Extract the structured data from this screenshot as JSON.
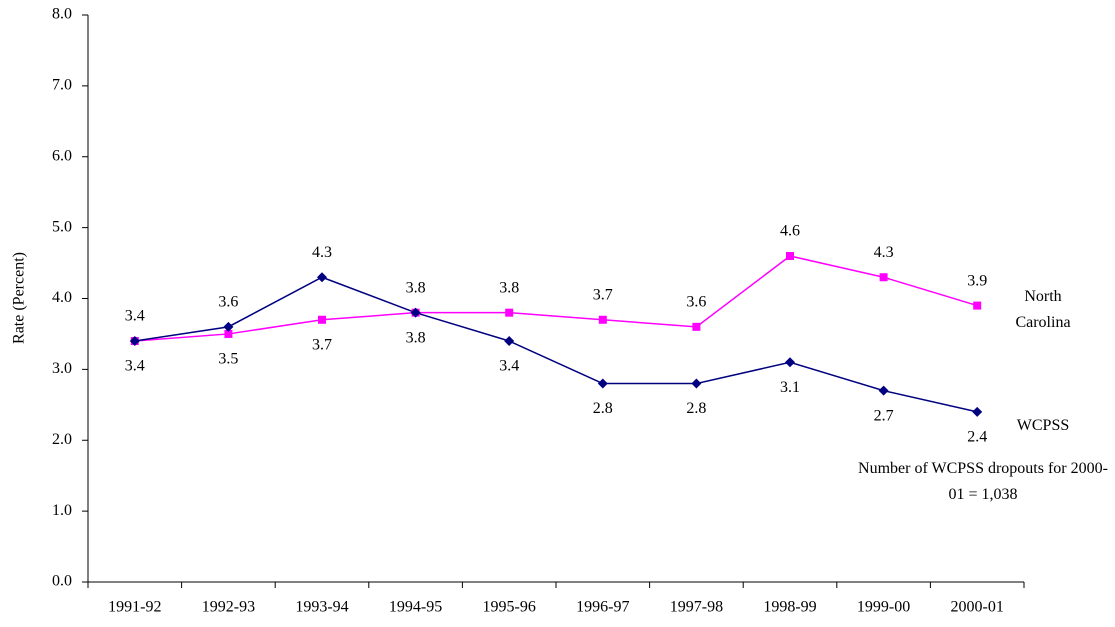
{
  "chart_data": {
    "type": "line",
    "y_label": "Rate (Percent)",
    "annotation": "Number of WCPSS dropouts for 2000-01 = 1,038",
    "categories": [
      "1991-92",
      "1992-93",
      "1993-94",
      "1994-95",
      "1995-96",
      "1996-97",
      "1997-98",
      "1998-99",
      "1999-00",
      "2000-01"
    ],
    "series": [
      {
        "name": "North Carolina",
        "color": "#ff00ff",
        "marker": "square",
        "values": [
          3.4,
          3.5,
          3.7,
          3.8,
          3.8,
          3.7,
          3.6,
          4.6,
          4.3,
          3.9
        ]
      },
      {
        "name": "WCPSS",
        "color": "#000080",
        "marker": "diamond",
        "values": [
          3.4,
          3.6,
          4.3,
          3.8,
          3.4,
          2.8,
          2.8,
          3.1,
          2.7,
          2.4
        ]
      }
    ],
    "ylim": [
      0,
      8
    ],
    "yticks": [
      {
        "value": 0,
        "label": "0.0"
      },
      {
        "value": 1,
        "label": "1.0"
      },
      {
        "value": 2,
        "label": "2.0"
      },
      {
        "value": 3,
        "label": "3.0"
      },
      {
        "value": 4,
        "label": "4.0"
      },
      {
        "value": 5,
        "label": "5.0"
      },
      {
        "value": 6,
        "label": "6.0"
      },
      {
        "value": 7,
        "label": "7.0"
      },
      {
        "value": 8,
        "label": "8.0"
      }
    ],
    "grid": false
  }
}
